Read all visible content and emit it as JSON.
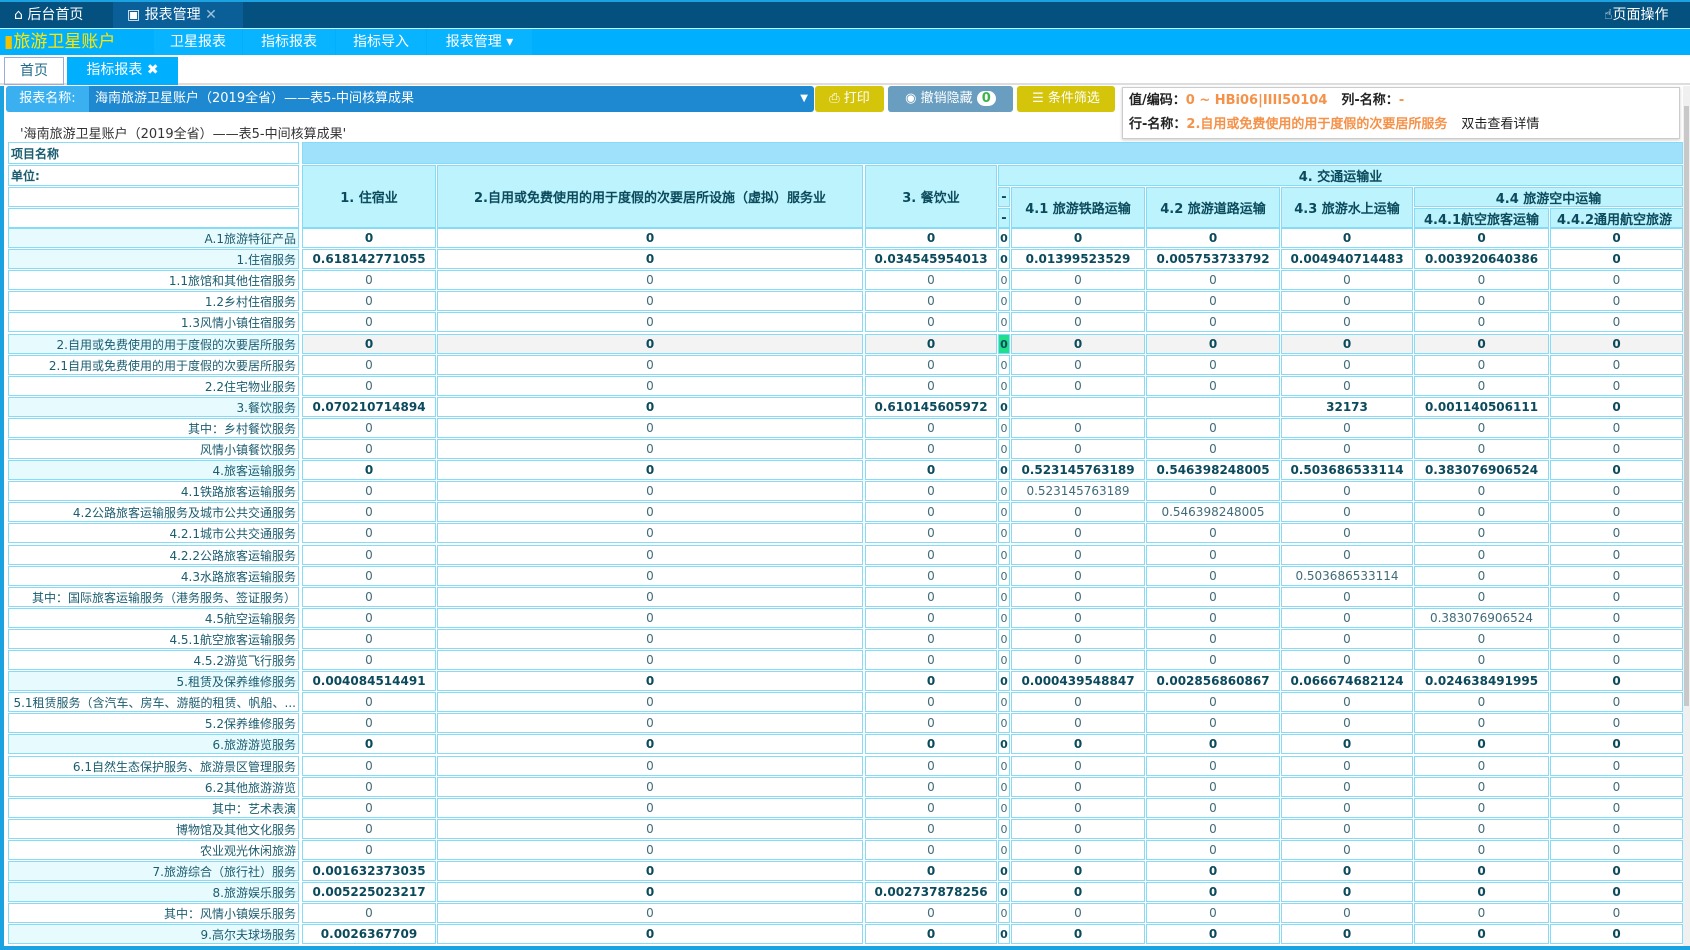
{
  "topbar": {
    "home_tab": "后台首页",
    "report_tab": "报表管理",
    "close": "✕",
    "page_ops": "页面操作"
  },
  "nav": {
    "brand": "旅游卫星账户",
    "items": [
      "卫星报表",
      "指标报表",
      "指标导入",
      "报表管理 ▾"
    ]
  },
  "tabs": {
    "home": "首页",
    "active": "指标报表",
    "close": "✖"
  },
  "toolbar": {
    "report_label": "报表名称:",
    "report_value": "海南旅游卫星账户（2019全省）——表5-中间核算成果",
    "print": "打印",
    "unhide": "撤销隐藏",
    "unhide_count": "0",
    "filter": "条件筛选"
  },
  "report_title": "'海南旅游卫星账户（2019全省）——表5-中间核算成果'",
  "header": {
    "item_name": "项目名称",
    "unit": "单位:",
    "c1": "1. 住宿业",
    "c2": "2.自用或免费使用的用于度假的次要居所设施（虚拟）服务业",
    "c3": "3. 餐饮业",
    "c4": "4. 交通运输业",
    "dash": "-",
    "c41": "4.1 旅游铁路运输",
    "c42": "4.2 旅游道路运输",
    "c43": "4.3 旅游水上运输",
    "c44": "4.4 旅游空中运输",
    "c441": "4.4.1航空旅客运输",
    "c442": "4.4.2通用航空旅游"
  },
  "rows": [
    {
      "label": "A.1旅游特征产品",
      "bold": true,
      "values": [
        "0",
        "0",
        "0",
        "0",
        "0",
        "0",
        "0",
        "0",
        "0"
      ]
    },
    {
      "label": "1.住宿服务",
      "bold": true,
      "values": [
        "0.618142771055",
        "0",
        "0.034545954013",
        "0",
        "0.01399523529",
        "0.005753733792",
        "0.004940714483",
        "0.003920640386",
        "0"
      ]
    },
    {
      "label": "1.1旅馆和其他住宿服务",
      "bold": false,
      "values": [
        "0",
        "0",
        "0",
        "0",
        "0",
        "0",
        "0",
        "0",
        "0"
      ]
    },
    {
      "label": "1.2乡村住宿服务",
      "bold": false,
      "values": [
        "0",
        "0",
        "0",
        "0",
        "0",
        "0",
        "0",
        "0",
        "0"
      ]
    },
    {
      "label": "1.3风情小镇住宿服务",
      "bold": false,
      "values": [
        "0",
        "0",
        "0",
        "0",
        "0",
        "0",
        "0",
        "0",
        "0"
      ]
    },
    {
      "label": "2.自用或免费使用的用于度假的次要居所服务",
      "bold": true,
      "selected": true,
      "values": [
        "0",
        "0",
        "0",
        "0",
        "0",
        "0",
        "0",
        "0",
        "0"
      ]
    },
    {
      "label": "2.1自用或免费使用的用于度假的次要居所服务",
      "bold": false,
      "values": [
        "0",
        "0",
        "0",
        "0",
        "0",
        "0",
        "0",
        "0",
        "0"
      ]
    },
    {
      "label": "2.2住宅物业服务",
      "bold": false,
      "values": [
        "0",
        "0",
        "0",
        "0",
        "0",
        "0",
        "0",
        "0",
        "0"
      ]
    },
    {
      "label": "3.餐饮服务",
      "bold": true,
      "values": [
        "0.070210714894",
        "0",
        "0.610145605972",
        "0",
        "",
        "",
        "32173",
        "0.001140506111",
        "0"
      ]
    },
    {
      "label": "其中：乡村餐饮服务",
      "bold": false,
      "values": [
        "0",
        "0",
        "0",
        "0",
        "0",
        "0",
        "0",
        "0",
        "0"
      ]
    },
    {
      "label": "风情小镇餐饮服务",
      "bold": false,
      "values": [
        "0",
        "0",
        "0",
        "0",
        "0",
        "0",
        "0",
        "0",
        "0"
      ]
    },
    {
      "label": "4.旅客运输服务",
      "bold": true,
      "values": [
        "0",
        "0",
        "0",
        "0",
        "0.523145763189",
        "0.546398248005",
        "0.503686533114",
        "0.383076906524",
        "0"
      ]
    },
    {
      "label": "4.1铁路旅客运输服务",
      "bold": false,
      "values": [
        "0",
        "0",
        "0",
        "0",
        "0.523145763189",
        "0",
        "0",
        "0",
        "0"
      ]
    },
    {
      "label": "4.2公路旅客运输服务及城市公共交通服务",
      "bold": false,
      "values": [
        "0",
        "0",
        "0",
        "0",
        "0",
        "0.546398248005",
        "0",
        "0",
        "0"
      ]
    },
    {
      "label": "4.2.1城市公共交通服务",
      "bold": false,
      "values": [
        "0",
        "0",
        "0",
        "0",
        "0",
        "0",
        "0",
        "0",
        "0"
      ]
    },
    {
      "label": "4.2.2公路旅客运输服务",
      "bold": false,
      "values": [
        "0",
        "0",
        "0",
        "0",
        "0",
        "0",
        "0",
        "0",
        "0"
      ]
    },
    {
      "label": "4.3水路旅客运输服务",
      "bold": false,
      "values": [
        "0",
        "0",
        "0",
        "0",
        "0",
        "0",
        "0.503686533114",
        "0",
        "0"
      ]
    },
    {
      "label": "其中：国际旅客运输服务（港务服务、签证服务）",
      "bold": false,
      "values": [
        "0",
        "0",
        "0",
        "0",
        "0",
        "0",
        "0",
        "0",
        "0"
      ]
    },
    {
      "label": "4.5航空运输服务",
      "bold": false,
      "values": [
        "0",
        "0",
        "0",
        "0",
        "0",
        "0",
        "0",
        "0.383076906524",
        "0"
      ]
    },
    {
      "label": "4.5.1航空旅客运输服务",
      "bold": false,
      "values": [
        "0",
        "0",
        "0",
        "0",
        "0",
        "0",
        "0",
        "0",
        "0"
      ]
    },
    {
      "label": "4.5.2游览飞行服务",
      "bold": false,
      "values": [
        "0",
        "0",
        "0",
        "0",
        "0",
        "0",
        "0",
        "0",
        "0"
      ]
    },
    {
      "label": "5.租赁及保养维修服务",
      "bold": true,
      "values": [
        "0.004084514491",
        "0",
        "0",
        "0",
        "0.000439548847",
        "0.002856860867",
        "0.066674682124",
        "0.024638491995",
        "0"
      ]
    },
    {
      "label": "5.1租赁服务（含汽车、房车、游艇的租赁、帆船、...",
      "bold": false,
      "values": [
        "0",
        "0",
        "0",
        "0",
        "0",
        "0",
        "0",
        "0",
        "0"
      ]
    },
    {
      "label": "5.2保养维修服务",
      "bold": false,
      "values": [
        "0",
        "0",
        "0",
        "0",
        "0",
        "0",
        "0",
        "0",
        "0"
      ]
    },
    {
      "label": "6.旅游游览服务",
      "bold": true,
      "values": [
        "0",
        "0",
        "0",
        "0",
        "0",
        "0",
        "0",
        "0",
        "0"
      ]
    },
    {
      "label": "6.1自然生态保护服务、旅游景区管理服务",
      "bold": false,
      "values": [
        "0",
        "0",
        "0",
        "0",
        "0",
        "0",
        "0",
        "0",
        "0"
      ]
    },
    {
      "label": "6.2其他旅游游览",
      "bold": false,
      "values": [
        "0",
        "0",
        "0",
        "0",
        "0",
        "0",
        "0",
        "0",
        "0"
      ]
    },
    {
      "label": "其中：艺术表演",
      "bold": false,
      "values": [
        "0",
        "0",
        "0",
        "0",
        "0",
        "0",
        "0",
        "0",
        "0"
      ]
    },
    {
      "label": "博物馆及其他文化服务",
      "bold": false,
      "values": [
        "0",
        "0",
        "0",
        "0",
        "0",
        "0",
        "0",
        "0",
        "0"
      ]
    },
    {
      "label": "农业观光休闲旅游",
      "bold": false,
      "values": [
        "0",
        "0",
        "0",
        "0",
        "0",
        "0",
        "0",
        "0",
        "0"
      ]
    },
    {
      "label": "7.旅游综合（旅行社）服务",
      "bold": true,
      "values": [
        "0.001632373035",
        "0",
        "0",
        "0",
        "0",
        "0",
        "0",
        "0",
        "0"
      ]
    },
    {
      "label": "8.旅游娱乐服务",
      "bold": true,
      "values": [
        "0.005225023217",
        "0",
        "0.002737878256",
        "0",
        "0",
        "0",
        "0",
        "0",
        "0"
      ]
    },
    {
      "label": "其中：风情小镇娱乐服务",
      "bold": false,
      "values": [
        "0",
        "0",
        "0",
        "0",
        "0",
        "0",
        "0",
        "0",
        "0"
      ]
    },
    {
      "label": "9.高尔夫球场服务",
      "bold": true,
      "values": [
        "0.0026367709",
        "0",
        "0",
        "0",
        "0",
        "0",
        "0",
        "0",
        "0"
      ]
    }
  ],
  "tooltip": {
    "value_label": "值/编码：",
    "value": "0 ~ HBi06|IIII50104",
    "row_label": "行-名称：",
    "row": "2.自用或免费使用的用于度假的次要居所服务",
    "col_label": "列-名称：",
    "col": "-",
    "hint": "双击查看详情"
  },
  "colors": {
    "topbar": "#04507f",
    "nav": "#00b0ff",
    "header": "#bdf3fd",
    "border": "#86dcf6",
    "print": "#d4c40a",
    "unhide": "#6a9ec0",
    "selected_cell": "#1fe08a",
    "tooltip_value": "#f5924a"
  }
}
